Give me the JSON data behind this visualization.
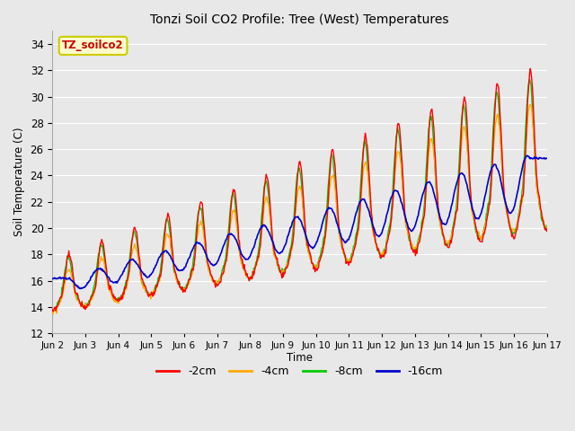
{
  "title": "Tonzi Soil CO2 Profile: Tree (West) Temperatures",
  "ylabel": "Soil Temperature (C)",
  "xlabel": "Time",
  "ylim": [
    12,
    35
  ],
  "yticks": [
    12,
    14,
    16,
    18,
    20,
    22,
    24,
    26,
    28,
    30,
    32,
    34
  ],
  "xtick_labels": [
    "Jun 2",
    "Jun 3",
    "Jun 4",
    "Jun 5",
    "Jun 6",
    "Jun 7",
    "Jun 8",
    "Jun 9",
    "Jun 10",
    "Jun 11",
    "Jun 12",
    "Jun 13",
    "Jun 14",
    "Jun 15",
    "Jun 16",
    "Jun 17"
  ],
  "legend_labels": [
    "-2cm",
    "-4cm",
    "-8cm",
    "-16cm"
  ],
  "line_colors": [
    "#ff0000",
    "#ffaa00",
    "#00cc00",
    "#0000cc"
  ],
  "annotation_text": "TZ_soilco2",
  "annotation_bg": "#ffffcc",
  "annotation_border": "#cccc00",
  "annotation_text_color": "#cc0000",
  "bg_color": "#e8e8e8",
  "days": 15,
  "n_points": 720
}
